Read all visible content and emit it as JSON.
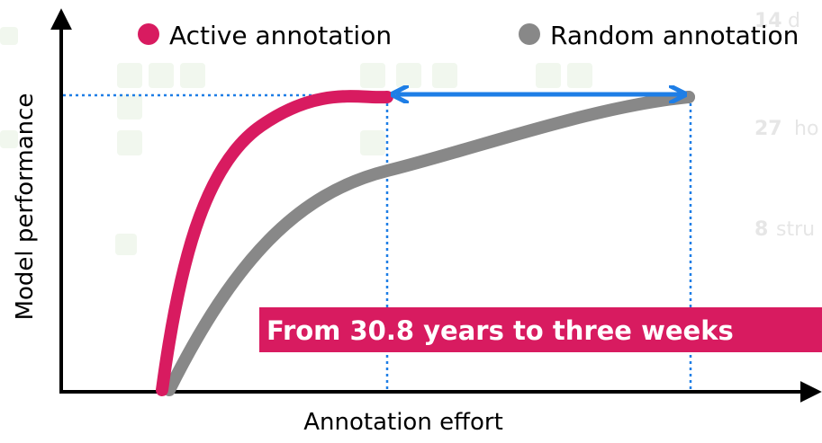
{
  "legend": {
    "active": "Active annotation",
    "random": "Random annotation"
  },
  "axes": {
    "y_label": "Model performance",
    "x_label": "Annotation effort"
  },
  "banner": "From 30.8 years to three weeks",
  "background": [
    {
      "number": "14",
      "text": "d"
    },
    {
      "number": "27",
      "text": "ho"
    },
    {
      "number": "8",
      "text": "stru"
    }
  ]
}
